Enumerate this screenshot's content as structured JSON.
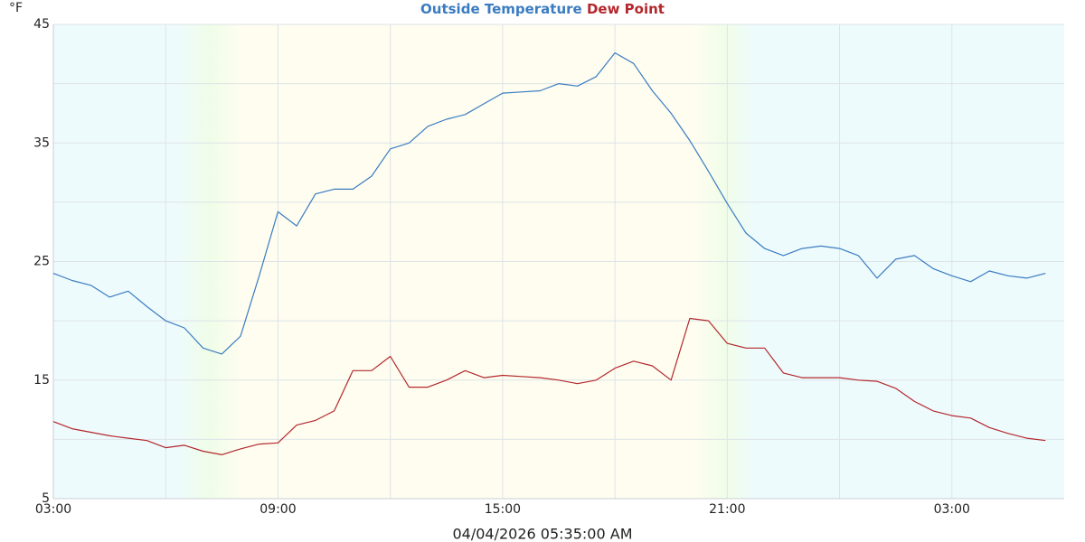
{
  "chart_data": {
    "type": "line",
    "y_label": "°F",
    "footer": "04/04/2026 05:35:00 AM",
    "x": [
      3,
      3.5,
      4,
      4.5,
      5,
      5.5,
      6,
      6.5,
      7,
      7.5,
      8,
      8.5,
      9,
      9.5,
      10,
      10.5,
      11,
      11.5,
      12,
      12.5,
      13,
      13.5,
      14,
      14.5,
      15,
      15.5,
      16,
      16.5,
      17,
      17.5,
      18,
      18.5,
      19,
      19.5,
      20,
      20.5,
      21,
      21.5,
      22,
      22.5,
      23,
      23.5,
      24,
      24.5,
      25,
      25.5,
      26,
      26.5,
      27,
      27.5,
      28,
      28.5,
      29,
      29.5
    ],
    "series": [
      {
        "name": "Outside Temperature",
        "color": "#3b7cc0",
        "values": [
          24.0,
          23.4,
          23.0,
          22.0,
          22.5,
          21.2,
          20.0,
          19.4,
          17.7,
          17.2,
          18.7,
          23.8,
          29.2,
          28.0,
          30.7,
          31.1,
          31.1,
          32.2,
          34.5,
          35.0,
          36.4,
          37.0,
          37.4,
          38.3,
          39.2,
          39.3,
          39.4,
          40.0,
          39.8,
          40.6,
          42.6,
          41.7,
          39.4,
          37.5,
          35.2,
          32.6,
          29.9,
          27.4,
          26.1,
          25.5,
          26.1,
          26.3,
          26.1,
          25.5,
          23.6,
          25.2,
          25.5,
          24.4,
          23.8,
          23.3,
          24.2,
          23.8,
          23.6,
          24.0
        ]
      },
      {
        "name": "Dew Point",
        "color": "#b3282d",
        "values": [
          11.5,
          10.9,
          10.6,
          10.3,
          10.1,
          9.9,
          9.3,
          9.5,
          9.0,
          8.7,
          9.2,
          9.6,
          9.7,
          11.2,
          11.6,
          12.4,
          15.8,
          15.8,
          17.0,
          14.4,
          14.4,
          15.0,
          15.8,
          15.2,
          15.4,
          15.3,
          15.2,
          15.0,
          14.7,
          15.0,
          16.0,
          16.6,
          16.2,
          15.0,
          20.2,
          20.0,
          18.1,
          17.7,
          17.7,
          15.6,
          15.2,
          15.2,
          15.2,
          15.0,
          14.9,
          14.3,
          13.2,
          12.4,
          12.0,
          11.8,
          11.0,
          10.5,
          10.1,
          9.9
        ]
      }
    ],
    "xlim": [
      3,
      30
    ],
    "xticks": [
      {
        "value": 3,
        "label": "03:00"
      },
      {
        "value": 9,
        "label": "09:00"
      },
      {
        "value": 15,
        "label": "15:00"
      },
      {
        "value": 21,
        "label": "21:00"
      },
      {
        "value": 27,
        "label": "03:00"
      }
    ],
    "x_minor_ticks": [
      6,
      12,
      18,
      24
    ],
    "ylim": [
      5,
      45
    ],
    "yticks": [
      5,
      15,
      25,
      35,
      45
    ],
    "y_minor_ticks": [
      10,
      20,
      30,
      40
    ],
    "grid": true
  }
}
